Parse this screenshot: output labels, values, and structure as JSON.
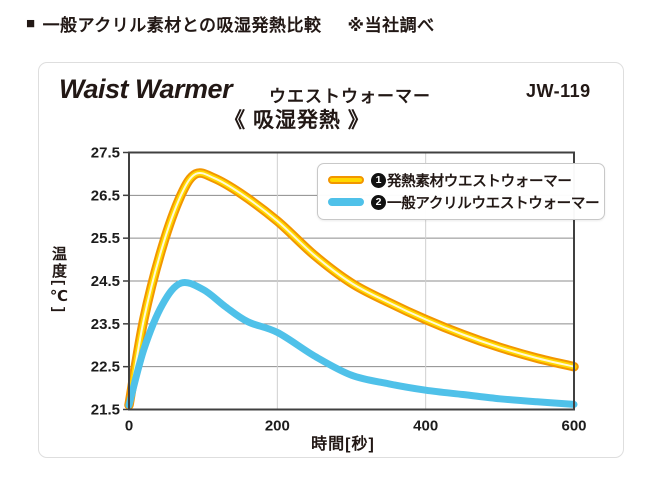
{
  "header": {
    "bullet": "■",
    "title": "一般アクリル素材との吸湿発熱比較",
    "note": "※当社調べ"
  },
  "card": {
    "brand_en": "Waist Warmer",
    "brand_jp": "ウエストウォーマー",
    "model": "JW-119",
    "chart_title": "《 吸湿発熱 》"
  },
  "colors": {
    "frame": "#404040",
    "grid_major": "#8c8c8c",
    "grid_minor": "#cfcfcf",
    "tick_text": "#1c1c1c",
    "card_border": "#dedede"
  },
  "chart_data": {
    "type": "line",
    "title": "吸湿発熱",
    "xlabel": "時間[秒]",
    "ylabel": "温度[℃]",
    "xlim": [
      0,
      600
    ],
    "ylim": [
      21.5,
      27.5
    ],
    "x_ticks": [
      0,
      200,
      400,
      600
    ],
    "y_ticks": [
      27.5,
      26.5,
      25.5,
      24.5,
      23.5,
      22.5,
      21.5
    ],
    "grid": true,
    "legend_position": "top-right",
    "series": [
      {
        "marker_number": "1",
        "label": "発熱素材ウエストウォーマー",
        "x": [
          0,
          20,
          45,
          70,
          90,
          115,
          150,
          200,
          250,
          300,
          350,
          400,
          450,
          500,
          550,
          600
        ],
        "y": [
          21.6,
          23.6,
          25.3,
          26.5,
          27.0,
          26.9,
          26.55,
          25.9,
          25.1,
          24.45,
          24.0,
          23.6,
          23.25,
          22.95,
          22.7,
          22.5
        ],
        "strokes": [
          {
            "color": "#F29600",
            "width": 9.5
          },
          {
            "color": "#FFD800",
            "width": 5.5
          },
          {
            "color": "#FFF9D6",
            "width": 2.0
          }
        ],
        "swatch": {
          "fill": "#FFD800",
          "border": "#F29600"
        }
      },
      {
        "marker_number": "2",
        "label": "一般アクリルウエストウォーマー",
        "x": [
          0,
          20,
          45,
          70,
          100,
          130,
          160,
          200,
          250,
          300,
          350,
          400,
          450,
          500,
          550,
          600
        ],
        "y": [
          21.6,
          22.9,
          23.95,
          24.45,
          24.3,
          23.9,
          23.55,
          23.3,
          22.75,
          22.3,
          22.1,
          21.95,
          21.85,
          21.75,
          21.68,
          21.62
        ],
        "strokes": [
          {
            "color": "#4FC1E9",
            "width": 7.0
          }
        ],
        "swatch": {
          "fill": "#4FC1E9",
          "border": "#4FC1E9"
        }
      }
    ]
  }
}
